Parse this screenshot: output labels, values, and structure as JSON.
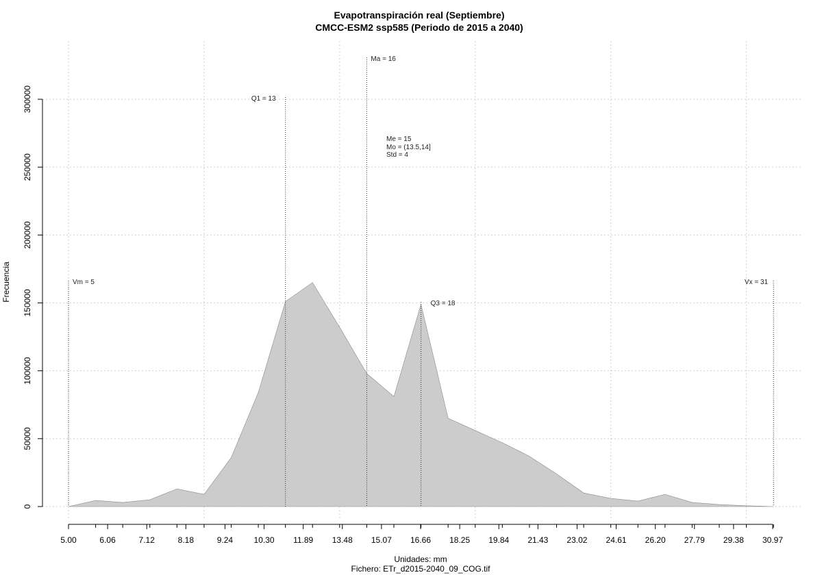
{
  "chart_data": {
    "type": "area",
    "title": "Evapotranspiración real (Septiembre)",
    "subtitle": "CMCC-ESM2 ssp585 (Periodo de 2015 a 2040)",
    "xlabel": "Unidades: mm",
    "ylabel": "Frecuencia",
    "footer": "Fichero: ETr_d2015-2040_09_COG.tif",
    "xlim": [
      5.0,
      30.97
    ],
    "ylim": [
      0,
      300000
    ],
    "grid": true,
    "x_tick_labels": [
      "5.00",
      "6.06",
      "7.12",
      "8.18",
      "9.24",
      "10.30",
      "11.89",
      "13.48",
      "15.07",
      "16.66",
      "18.25",
      "19.84",
      "21.43",
      "23.02",
      "24.61",
      "26.20",
      "27.79",
      "29.38",
      "30.97"
    ],
    "y_ticks": [
      0,
      50000,
      100000,
      150000,
      200000,
      250000,
      300000
    ],
    "y_tick_labels": [
      "0",
      "50000",
      "100000",
      "150000",
      "200000",
      "250000",
      "300000"
    ],
    "series": [
      {
        "x": [
          5.0,
          6.0,
          7.0,
          8.0,
          9.0,
          10.0,
          11.0,
          12.0,
          13.0,
          14.0,
          15.0,
          16.0,
          17.0,
          18.0,
          19.0,
          20.0,
          21.0,
          22.0,
          23.0,
          24.0,
          25.0,
          26.0,
          27.0,
          28.0,
          29.0,
          30.0,
          31.0
        ],
        "y": [
          0,
          4500,
          3000,
          5000,
          13000,
          9000,
          36000,
          84000,
          151000,
          165000,
          132000,
          98000,
          81000,
          149000,
          65000,
          56000,
          47000,
          37000,
          24000,
          10000,
          6000,
          4000,
          9000,
          3000,
          1500,
          600,
          0
        ]
      }
    ],
    "vlines": [
      {
        "x": 5,
        "label": "Vm = 5"
      },
      {
        "x": 10,
        "label": ""
      },
      {
        "x": 13,
        "label": "Q1 = 13"
      },
      {
        "x": 16,
        "label": "Ma = 16"
      },
      {
        "x": 18,
        "label": "Q3 = 18"
      },
      {
        "x": 31,
        "label": "Vx = 31"
      }
    ],
    "stats": [
      "Me = 15",
      "Mo = (13.5,14]",
      "Std = 4"
    ]
  }
}
